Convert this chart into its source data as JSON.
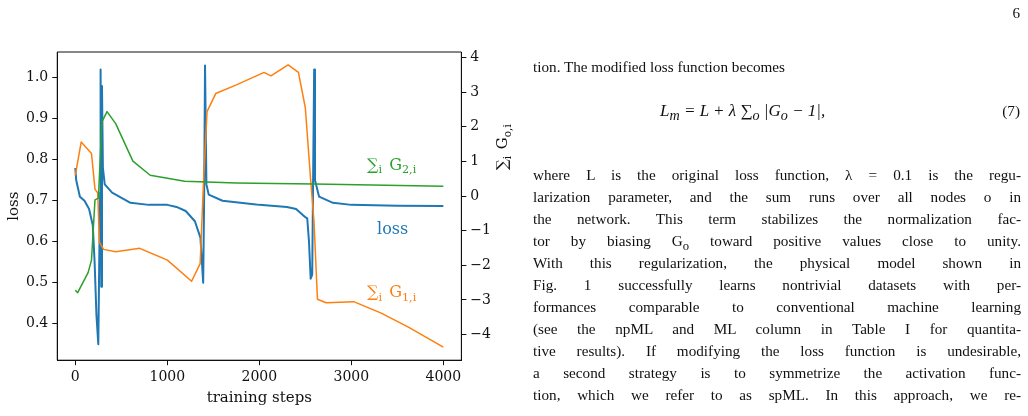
{
  "chart_data": {
    "type": "line",
    "xlabel": "training steps",
    "ylabel": "loss",
    "y2label": "∑$_{i}$ G$_{o,i}$",
    "xlim": [
      -196,
      4196
    ],
    "xticks": [
      0,
      1000,
      2000,
      3000,
      4000
    ],
    "ylim": [
      0.311,
      1.063
    ],
    "yticks": [
      0.4,
      0.5,
      0.6,
      0.7,
      0.8,
      0.9,
      {
        "value": 1.0,
        "label": "1.0"
      }
    ],
    "y2lim": [
      -4.74,
      4.16
    ],
    "y2ticks": [
      {
        "value": -4,
        "label": "−4"
      },
      {
        "value": -3,
        "label": "−3"
      },
      {
        "value": -2,
        "label": "−2"
      },
      {
        "value": -1,
        "label": "−1"
      },
      0,
      1,
      2,
      3,
      4
    ],
    "grid": false,
    "legend": false,
    "marker": "none",
    "line_style": "solid",
    "series": [
      {
        "name": "loss",
        "color": "#1f77b4",
        "x": [
          0,
          10,
          50,
          100,
          150,
          190,
          210,
          230,
          250,
          260,
          270,
          275,
          282,
          290,
          300,
          320,
          400,
          600,
          800,
          1000,
          1100,
          1200,
          1300,
          1360,
          1390,
          1400,
          1410,
          1425,
          1450,
          1600,
          2000,
          2300,
          2400,
          2500,
          2521,
          2540,
          2558,
          2575,
          2596,
          2605,
          2650,
          2800,
          3000,
          3500,
          4000
        ],
        "values": [
          0.78,
          0.75,
          0.71,
          0.7,
          0.68,
          0.64,
          0.55,
          0.42,
          0.35,
          0.55,
          0.72,
          1.02,
          0.49,
          0.98,
          0.78,
          0.74,
          0.72,
          0.695,
          0.69,
          0.69,
          0.685,
          0.675,
          0.65,
          0.61,
          0.5,
          0.7,
          1.03,
          0.74,
          0.715,
          0.7,
          0.69,
          0.685,
          0.68,
          0.66,
          0.657,
          0.6,
          0.51,
          0.52,
          1.02,
          0.75,
          0.71,
          0.695,
          0.69,
          0.688,
          0.687
        ]
      },
      {
        "name": "∑$_{i}$ G$_{2,i}$",
        "color": "#2ca02c",
        "axis": "y2",
        "x": [
          0,
          26,
          139,
          176,
          214,
          251,
          289,
          345,
          439,
          626,
          814,
          1189,
          1751,
          2600,
          4000
        ],
        "values": [
          -2.72,
          -2.79,
          -2.21,
          -1.85,
          -0.11,
          -0.06,
          2.14,
          2.44,
          2.09,
          1.01,
          0.6,
          0.43,
          0.38,
          0.35,
          0.28
        ]
      },
      {
        "name": "∑$_{i}$ G$_{1,i}$",
        "color": "#ff7f0e",
        "axis": "y2",
        "x": [
          0,
          64,
          176,
          214,
          244,
          262,
          307,
          439,
          701,
          1001,
          1264,
          1357,
          1395,
          1432,
          1526,
          1751,
          2051,
          2126,
          2313,
          2425,
          2500,
          2557,
          2594,
          2632,
          2726,
          3026,
          3325,
          3625,
          4000
        ],
        "values": [
          0.6,
          1.56,
          1.23,
          0.2,
          0.09,
          -1.33,
          -1.54,
          -1.61,
          -1.51,
          -1.85,
          -2.46,
          -1.95,
          0.5,
          2.44,
          2.96,
          3.21,
          3.57,
          3.47,
          3.79,
          3.57,
          2.55,
          0.5,
          -0.72,
          -2.98,
          -3.08,
          -3.05,
          -3.38,
          -3.79,
          -4.36
        ]
      }
    ],
    "annotations": [
      "6",
      "tion. The modified loss function becomes",
      "L$_{m}$ = L + λ ∑$_{o}$ |G$_{o}$ − 1|,",
      "(7)",
      "where L is the original loss function, λ = 0.1 is the regu-",
      "larization parameter, and the sum runs over all nodes o in",
      "the network. This term stabilizes the normalization fac-",
      "tor by biasing G$_{o}$ toward positive values close to unity.",
      "With this regularization, the physical model shown in",
      "Fig. 1 successfully learns nontrivial datasets with per-",
      "formances comparable to conventional machine learning",
      "(see the npML and ML column in Table I for quantita-",
      "tive results). If modifying the loss function is undesirable,",
      "a second strategy is to symmetrize the activation func-",
      "tion, which we refer to as spML. In this approach, we re-"
    ]
  }
}
